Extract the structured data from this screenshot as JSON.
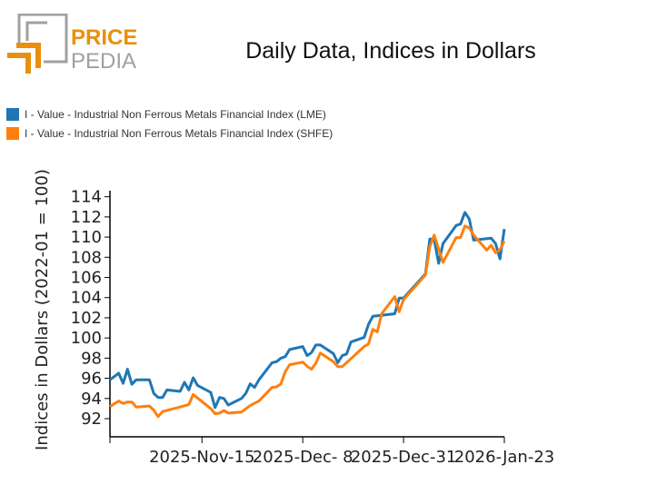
{
  "logo": {
    "line1": "PRICE",
    "line2": "PEDIA"
  },
  "colors": {
    "brand_orange": "#e8900c",
    "brand_gray": "#a0a0a0",
    "lme": "#1f77b4",
    "shfe": "#ff7f0e"
  },
  "chart_data": {
    "type": "line",
    "title": "Daily Data, Indices in Dollars",
    "xlabel": "",
    "ylabel": "Indices in Dollars (2022-01 = 100)",
    "xlim": [
      "2025-10-25",
      "2026-01-23"
    ],
    "ylim": [
      90.2,
      114.6
    ],
    "yticks": [
      92,
      94,
      96,
      98,
      100,
      102,
      104,
      106,
      108,
      110,
      112,
      114
    ],
    "xticks": [
      {
        "date": "2025-10-25",
        "label": ""
      },
      {
        "date": "2025-11-15",
        "label": "2025-Nov-15"
      },
      {
        "date": "2025-12-08",
        "label": "2025-Dec- 8"
      },
      {
        "date": "2025-12-31",
        "label": "2025-Dec-31"
      },
      {
        "date": "2026-01-23",
        "label": "2026-Jan-23"
      }
    ],
    "grid": false,
    "legend": "top-left",
    "series": [
      {
        "name": "I - Value - Industrial Non Ferrous Metals Financial Index (LME)",
        "color": "#1f77b4",
        "x": [
          "2025-10-25",
          "2025-10-27",
          "2025-10-28",
          "2025-10-29",
          "2025-10-30",
          "2025-10-31",
          "2025-11-03",
          "2025-11-04",
          "2025-11-05",
          "2025-11-06",
          "2025-11-07",
          "2025-11-10",
          "2025-11-11",
          "2025-11-12",
          "2025-11-13",
          "2025-11-14",
          "2025-11-17",
          "2025-11-18",
          "2025-11-19",
          "2025-11-20",
          "2025-11-21",
          "2025-11-24",
          "2025-11-25",
          "2025-11-26",
          "2025-11-27",
          "2025-11-28",
          "2025-12-01",
          "2025-12-02",
          "2025-12-03",
          "2025-12-04",
          "2025-12-05",
          "2025-12-08",
          "2025-12-09",
          "2025-12-10",
          "2025-12-11",
          "2025-12-12",
          "2025-12-15",
          "2025-12-16",
          "2025-12-17",
          "2025-12-18",
          "2025-12-19",
          "2025-12-22",
          "2025-12-23",
          "2025-12-24",
          "2025-12-25",
          "2025-12-29",
          "2025-12-30",
          "2025-12-31",
          "2026-01-05",
          "2026-01-06",
          "2026-01-07",
          "2026-01-08",
          "2026-01-09",
          "2026-01-12",
          "2026-01-13",
          "2026-01-14",
          "2026-01-15",
          "2026-01-16",
          "2026-01-17",
          "2026-01-20",
          "2026-01-21",
          "2026-01-22",
          "2026-01-23"
        ],
        "y": [
          95.85,
          96.5,
          95.5,
          96.9,
          95.4,
          95.85,
          95.85,
          94.5,
          94.1,
          94.1,
          94.85,
          94.7,
          95.6,
          94.85,
          96.05,
          95.3,
          94.6,
          93.1,
          94.1,
          94.0,
          93.35,
          94.0,
          94.5,
          95.45,
          95.1,
          95.85,
          97.55,
          97.65,
          98.0,
          98.15,
          98.85,
          99.15,
          98.25,
          98.55,
          99.3,
          99.3,
          98.45,
          97.55,
          98.25,
          98.4,
          99.6,
          100.05,
          101.35,
          102.15,
          102.2,
          102.4,
          103.95,
          103.95,
          106.35,
          109.8,
          109.8,
          107.4,
          109.35,
          111.15,
          111.3,
          112.45,
          111.8,
          109.7,
          109.75,
          109.9,
          109.35,
          107.85,
          110.8
        ]
      },
      {
        "name": "I - Value - Industrial Non Ferrous Metals Financial Index (SHFE)",
        "color": "#ff7f0e",
        "x": [
          "2025-10-25",
          "2025-10-27",
          "2025-10-28",
          "2025-10-29",
          "2025-10-30",
          "2025-10-31",
          "2025-11-03",
          "2025-11-04",
          "2025-11-05",
          "2025-11-06",
          "2025-11-10",
          "2025-11-12",
          "2025-11-13",
          "2025-11-17",
          "2025-11-18",
          "2025-11-19",
          "2025-11-20",
          "2025-11-21",
          "2025-11-24",
          "2025-11-26",
          "2025-11-28",
          "2025-12-01",
          "2025-12-02",
          "2025-12-03",
          "2025-12-04",
          "2025-12-05",
          "2025-12-08",
          "2025-12-09",
          "2025-12-10",
          "2025-12-11",
          "2025-12-12",
          "2025-12-15",
          "2025-12-16",
          "2025-12-17",
          "2025-12-18",
          "2025-12-22",
          "2025-12-23",
          "2025-12-24",
          "2025-12-25",
          "2025-12-26",
          "2025-12-29",
          "2025-12-30",
          "2025-12-31",
          "2026-01-05",
          "2026-01-06",
          "2026-01-07",
          "2026-01-09",
          "2026-01-12",
          "2026-01-13",
          "2026-01-14",
          "2026-01-15",
          "2026-01-16",
          "2026-01-19",
          "2026-01-20",
          "2026-01-21",
          "2026-01-22",
          "2026-01-23"
        ],
        "y": [
          93.2,
          93.75,
          93.5,
          93.65,
          93.65,
          93.15,
          93.25,
          92.85,
          92.2,
          92.7,
          93.15,
          93.4,
          94.4,
          93.0,
          92.5,
          92.55,
          92.8,
          92.55,
          92.65,
          93.3,
          93.75,
          95.1,
          95.15,
          95.45,
          96.65,
          97.35,
          97.6,
          97.2,
          96.9,
          97.5,
          98.5,
          97.65,
          97.15,
          97.15,
          97.55,
          99.15,
          99.4,
          100.85,
          100.6,
          102.4,
          104.1,
          102.6,
          103.8,
          106.25,
          109.05,
          110.2,
          107.5,
          109.95,
          109.95,
          111.1,
          110.9,
          110.2,
          108.7,
          109.2,
          108.45,
          108.75,
          109.6
        ]
      }
    ]
  }
}
